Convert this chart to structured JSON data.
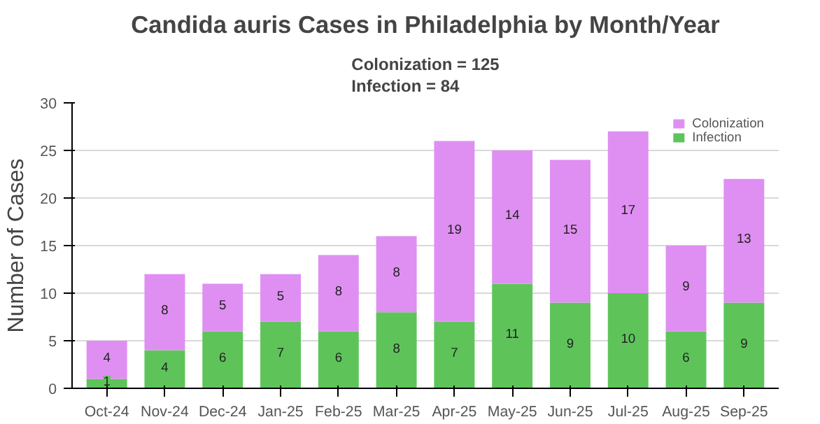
{
  "chart_data": {
    "type": "bar",
    "title": "Candida auris Cases in Philadelphia by Month/Year",
    "subtitle": "Colonization = 125\nInfection = 84",
    "ylabel": "Number of Cases",
    "categories": [
      "Oct-24",
      "Nov-24",
      "Dec-24",
      "Jan-25",
      "Feb-25",
      "Mar-25",
      "Apr-25",
      "May-25",
      "Jun-25",
      "Jul-25",
      "Aug-25",
      "Sep-25"
    ],
    "stacked": true,
    "series": [
      {
        "name": "Infection",
        "color": "#5ec45a",
        "values": [
          1,
          4,
          6,
          7,
          6,
          8,
          7,
          11,
          9,
          10,
          6,
          9
        ]
      },
      {
        "name": "Colonization",
        "color": "#df8ff2",
        "values": [
          4,
          8,
          5,
          5,
          8,
          8,
          19,
          14,
          15,
          17,
          9,
          13
        ]
      }
    ],
    "ylim": [
      0,
      30
    ],
    "yticks": [
      0,
      5,
      10,
      15,
      20,
      25,
      30
    ],
    "grid": "y",
    "legend": "top right",
    "data_labels": true
  }
}
